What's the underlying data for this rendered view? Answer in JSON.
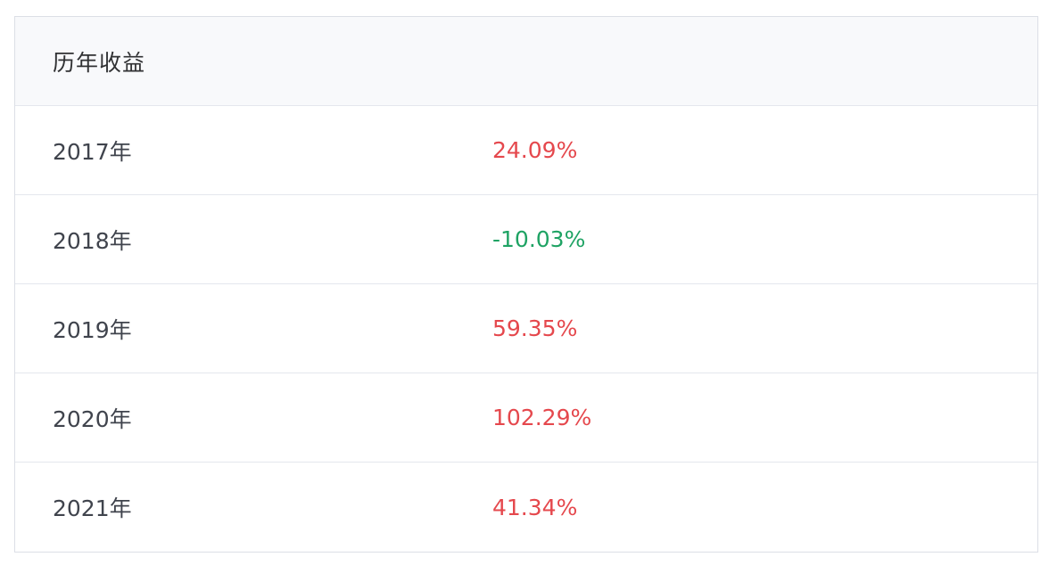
{
  "table": {
    "header": "历年收益",
    "rows": [
      {
        "year": "2017年",
        "value": "24.09%",
        "sign": "positive"
      },
      {
        "year": "2018年",
        "value": "-10.03%",
        "sign": "negative"
      },
      {
        "year": "2019年",
        "value": "59.35%",
        "sign": "positive"
      },
      {
        "year": "2020年",
        "value": "102.29%",
        "sign": "positive"
      },
      {
        "year": "2021年",
        "value": "41.34%",
        "sign": "positive"
      }
    ]
  },
  "colors": {
    "positive": "#e5484d",
    "negative": "#1fa364"
  }
}
